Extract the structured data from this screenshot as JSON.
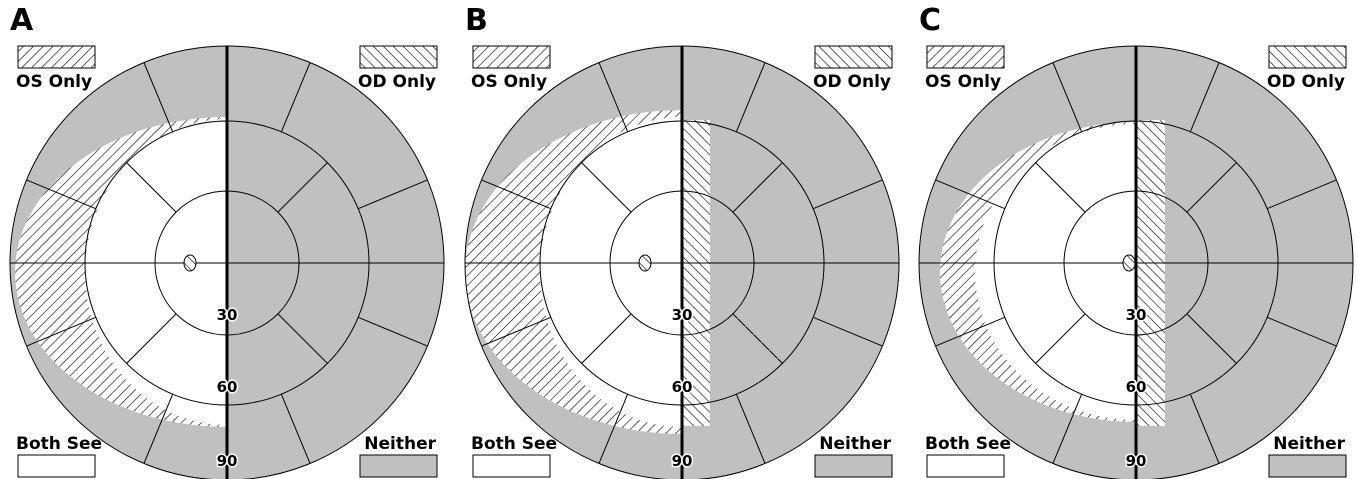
{
  "panels": [
    {
      "label": "A",
      "legend": {
        "os_only": "OS Only",
        "od_only": "OD Only",
        "both_see": "Both See",
        "neither": "Neither"
      },
      "rings": [
        "30",
        "60",
        "90"
      ]
    },
    {
      "label": "B",
      "legend": {
        "os_only": "OS Only",
        "od_only": "OD Only",
        "both_see": "Both See",
        "neither": "Neither"
      },
      "rings": [
        "30",
        "60",
        "90"
      ]
    },
    {
      "label": "C",
      "legend": {
        "os_only": "OS Only",
        "od_only": "OD Only",
        "both_see": "Both See",
        "neither": "Neither"
      },
      "rings": [
        "30",
        "60",
        "90"
      ]
    }
  ]
}
